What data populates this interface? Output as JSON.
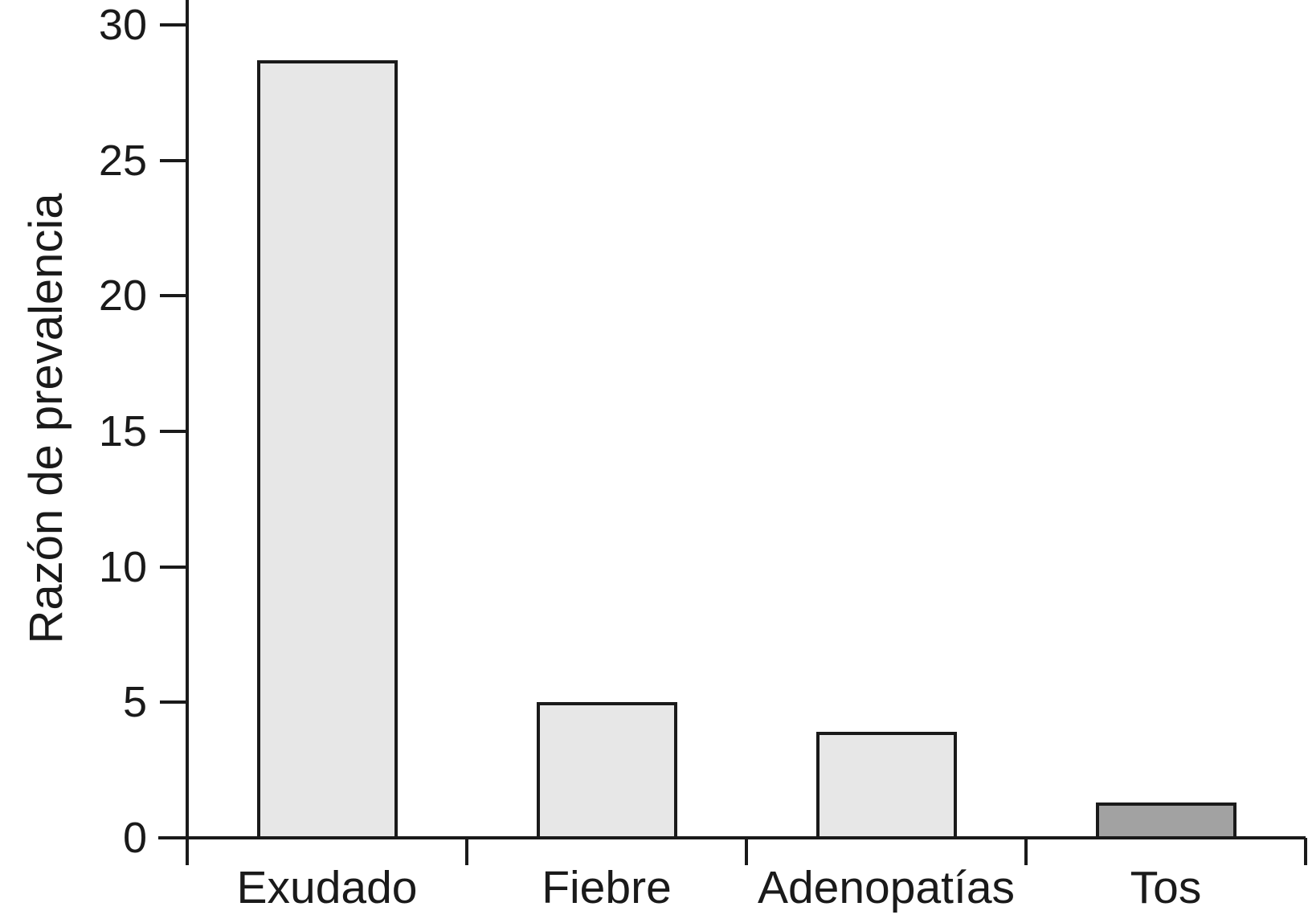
{
  "figure": {
    "background_color": "#ffffff",
    "axis_color": "#1a1a1a"
  },
  "chart_data": {
    "type": "bar",
    "categories": [
      "Exudado",
      "Fiebre",
      "Adenopatías",
      "Tos"
    ],
    "values": [
      28.7,
      5.0,
      3.9,
      1.3
    ],
    "bar_colors": [
      "#e7e7e7",
      "#e7e7e7",
      "#e7e7e7",
      "#a2a2a2"
    ],
    "title": "",
    "xlabel": "",
    "ylabel": "Razón de prevalencia",
    "ylim": [
      0,
      30
    ],
    "yticks": [
      0,
      5,
      10,
      15,
      20,
      25,
      30
    ],
    "grid": false,
    "legend": false,
    "bar_border_color": "#1a1a1a"
  }
}
